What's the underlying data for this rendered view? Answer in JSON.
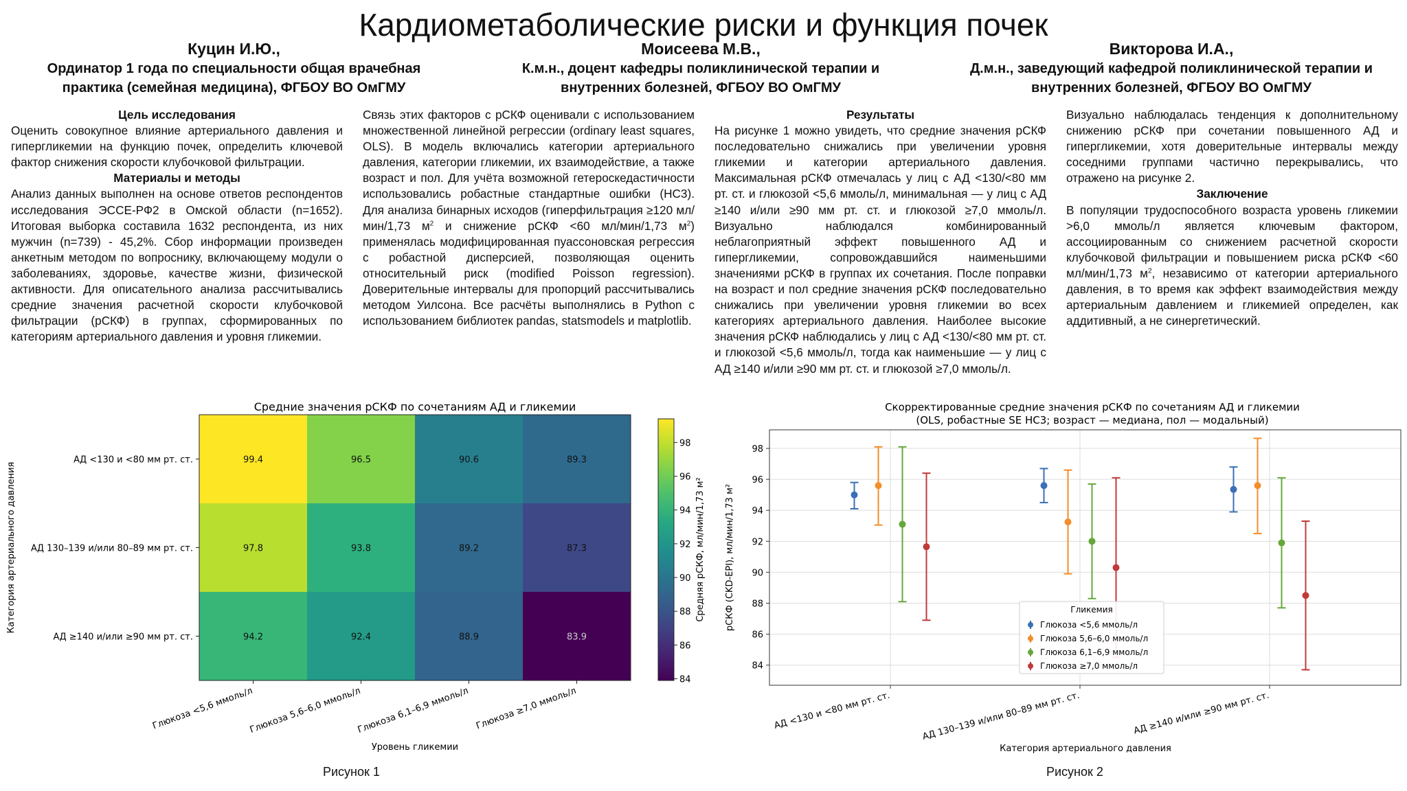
{
  "poster": {
    "title": "Кардиометаболические риски и функция почек",
    "authors": [
      {
        "name": "Куцин И.Ю.,",
        "affiliation": "Ординатор 1 года по специальности общая врачебная практика (семейная медицина), ФГБОУ ВО ОмГМУ"
      },
      {
        "name": "Моисеева М.В.,",
        "affiliation": "К.м.н., доцент кафедры поликлинической терапии и внутренних болезней, ФГБОУ ВО ОмГМУ"
      },
      {
        "name": "Викторова И.А.,",
        "affiliation": "Д.м.н., заведующий кафедрой поликлинической терапии и внутренних болезней, ФГБОУ ВО ОмГМУ"
      }
    ]
  },
  "sections": {
    "aim_heading": "Цель исследования",
    "aim_text": "Оценить совокупное влияние артериального давления и гипергликемии на функцию почек, определить ключевой фактор снижения скорости клубочковой фильтрации.",
    "methods_heading": "Материалы и методы",
    "methods_text": "Анализ данных выполнен на основе ответов респондентов исследования ЭССЕ-РФ2 в Омской области (n=1652). Итоговая выборка составила 1632 респондента, из них мужчин (n=739) - 45,2%. Сбор информации произведен анкетным методом по вопроснику, включающему модули о заболеваниях, здоровье, качестве жизни, физической активности. Для описательного анализа рассчитывались средние значения расчетной скорости клубочковой фильтрации (рСКФ) в группах, сформированных по категориям артериального давления и уровня гликемии.",
    "methods_text2_a": "Связь этих факторов с рСКФ оценивали с использованием множественной линейной регрессии (ordinary least squares, OLS). В модель включались категории артериального давления, категории гликемии, их взаимодействие, а также возраст и пол. Для учёта возможной гетероскедастичности использовались робастные стандартные ошибки (HC3). Для анализа бинарных исходов (гиперфильтрация ≥120 мл/мин/1,73 м",
    "methods_text2_b": " и снижение рСКФ <60 мл/мин/1,73 м",
    "methods_text2_c": ") применялась модифицированная пуассоновская регрессия с робастной дисперсией, позволяющая оценить относительный риск (modified Poisson regression). Доверительные интервалы для пропорций рассчитывались методом Уилсона. Все расчёты выполнялись в Python с использованием библиотек pandas, statsmodels и matplotlib.",
    "results_heading": "Результаты",
    "results_text": "На рисунке 1 можно увидеть, что средние значения рСКФ последовательно снижались при увеличении уровня гликемии и категории артериального давления. Максимальная рСКФ отмечалась у лиц с АД <130/<80 мм рт. ст. и глюкозой <5,6 ммоль/л, минимальная — у лиц с АД ≥140 и/или ≥90 мм рт. ст. и глюкозой ≥7,0 ммоль/л. Визуально наблюдался комбинированный неблагоприятный эффект повышенного АД и гипергликемии, сопровождавшийся наименьшими значениями рСКФ в группах их сочетания. После поправки на возраст и пол средние значения рСКФ последовательно снижались при увеличении уровня гликемии во всех категориях артериального давления. Наиболее высокие значения рСКФ наблюдались у лиц с АД <130/<80 мм рт. ст. и глюкозой <5,6 ммоль/л, тогда как наименьшие — у лиц с АД ≥140 и/или ≥90 мм рт. ст. и глюкозой ≥7,0 ммоль/л.",
    "results_text2": "Визуально наблюдалась тенденция к дополнительному снижению рСКФ при сочетании повышенного АД и гипергликемии, хотя доверительные интервалы между соседними группами частично перекрывались, что отражено на рисунке 2.",
    "conclusion_heading": "Заключение",
    "conclusion_text_a": "В популяции трудоспособного возраста уровень гликемии >6,0 ммоль/л является ключевым фактором, ассоциированным со снижением расчетной скорости клубочковой фильтрации и повышением риска рСКФ <60 мл/мин/1,73 м",
    "conclusion_text_b": ", независимо от категории артериального давления, в то время как эффект взаимодействия между артериальным давлением и гликемией определен, как аддитивный, а не синергетический.",
    "sup2": "2"
  },
  "chart_data": [
    {
      "type": "heatmap",
      "title": "Средние значения рСКФ по сочетаниям АД и гликемии",
      "xlabel": "Уровень гликемии",
      "ylabel": "Категория артериального давления",
      "colorbar_label": "Средняя рСКФ, мл/мин/1,73 м²",
      "colorbar_ticks": [
        "84",
        "86",
        "88",
        "90",
        "92",
        "94",
        "96",
        "98"
      ],
      "x_categories": [
        "Глюкоза <5,6 ммоль/л",
        "Глюкоза 5,6–6,0 ммоль/л",
        "Глюкоза 6,1–6,9 ммоль/л",
        "Глюкоза ≥7,0 ммоль/л"
      ],
      "y_categories": [
        "АД <130 и <80 мм рт. ст.",
        "АД 130–139 и/или 80–89 мм рт. ст.",
        "АД ≥140 и/или ≥90 мм рт. ст."
      ],
      "values": [
        [
          "99.4",
          "96.5",
          "90.6",
          "89.3"
        ],
        [
          "97.8",
          "93.8",
          "89.2",
          "87.3"
        ],
        [
          "94.2",
          "92.4",
          "88.9",
          "83.9"
        ]
      ],
      "vmin": 83.9,
      "vmax": 99.4,
      "caption": "Рисунок 1"
    },
    {
      "type": "scatter",
      "title_line1": "Скорректированные средние значения рСКФ по сочетаниям АД и гликемии",
      "title_line2": "(OLS, робастные SE HC3; возраст — медиана, пол — модальный)",
      "xlabel": "Категория артериального давления",
      "ylabel": "рСКФ (CKD-EPI), мл/мин/1,73 м²",
      "y_ticks": [
        "84",
        "86",
        "88",
        "90",
        "92",
        "94",
        "96",
        "98"
      ],
      "ylim": [
        82.7,
        99.2
      ],
      "categories": [
        "АД <130 и <80 мм рт. ст.",
        "АД 130–139 и/или 80–89 мм рт. ст.",
        "АД ≥140 и/или ≥90 мм рт. ст."
      ],
      "legend_title": "Гликемия",
      "legend_position": "lower-center",
      "grid": true,
      "series": [
        {
          "name": "Глюкоза <5,6 ммоль/л",
          "color": "#3b6fb6",
          "values": [
            95.0,
            95.6,
            95.35
          ],
          "lower": [
            94.1,
            94.5,
            93.9
          ],
          "upper": [
            95.8,
            96.7,
            96.8
          ]
        },
        {
          "name": "Глюкоза 5,6–6,0 ммоль/л",
          "color": "#f28e2b",
          "values": [
            95.6,
            93.25,
            95.6
          ],
          "lower": [
            93.05,
            89.9,
            92.5
          ],
          "upper": [
            98.1,
            96.6,
            98.65
          ]
        },
        {
          "name": "Глюкоза 6,1–6,9 ммоль/л",
          "color": "#66a73a",
          "values": [
            93.1,
            92.0,
            91.9
          ],
          "lower": [
            88.1,
            88.3,
            87.7
          ],
          "upper": [
            98.1,
            95.7,
            96.1
          ]
        },
        {
          "name": "Глюкоза ≥7,0 ммоль/л",
          "color": "#c03a3a",
          "values": [
            91.65,
            90.3,
            88.5
          ],
          "lower": [
            86.9,
            84.5,
            83.7
          ],
          "upper": [
            96.4,
            96.1,
            93.3
          ]
        }
      ],
      "caption": "Рисунок 2"
    }
  ]
}
